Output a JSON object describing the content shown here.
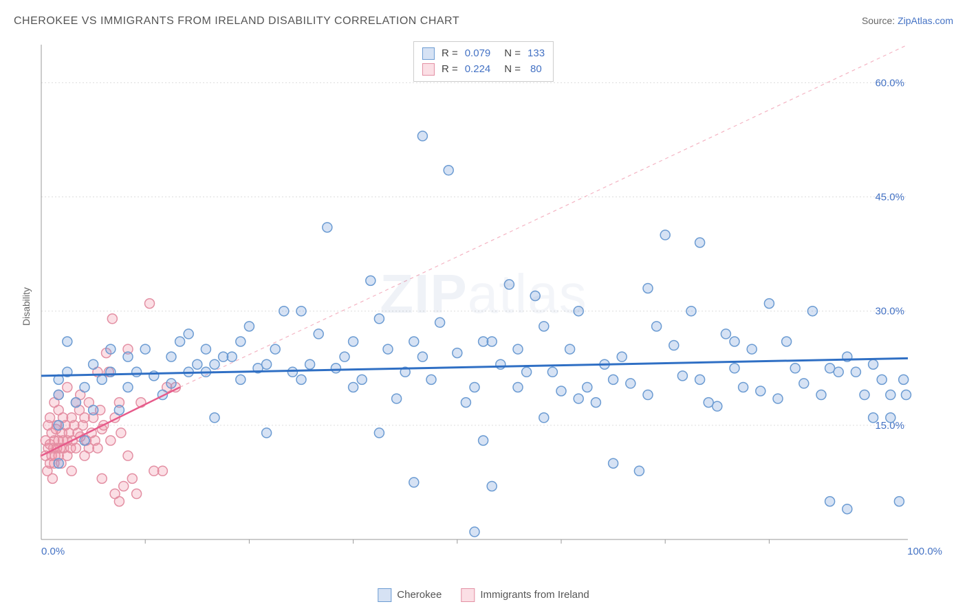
{
  "title": "CHEROKEE VS IMMIGRANTS FROM IRELAND DISABILITY CORRELATION CHART",
  "source_prefix": "Source: ",
  "source_name": "ZipAtlas.com",
  "ylabel": "Disability",
  "watermark_a": "ZIP",
  "watermark_b": "atlas",
  "chart": {
    "type": "scatter",
    "xlim": [
      0,
      100
    ],
    "ylim": [
      0,
      65
    ],
    "ytick_values": [
      15,
      30,
      45,
      60
    ],
    "ytick_labels": [
      "15.0%",
      "30.0%",
      "45.0%",
      "60.0%"
    ],
    "xtick_labels": [
      "0.0%",
      "100.0%"
    ],
    "xtick_minor": [
      12,
      24,
      36,
      48,
      60,
      72,
      84
    ],
    "grid_color": "#dcdcdc",
    "axis_color": "#999999",
    "background": "#ffffff",
    "marker_radius": 7,
    "marker_stroke_width": 1.5,
    "series": [
      {
        "name": "Cherokee",
        "fill": "rgba(120,160,220,0.30)",
        "stroke": "#6b9bd2",
        "R": "0.079",
        "N": "133",
        "trend": {
          "x1": 0,
          "y1": 21.5,
          "x2": 100,
          "y2": 23.8,
          "color": "#2f6fc4",
          "width": 3,
          "dash": ""
        },
        "points": [
          [
            2,
            15
          ],
          [
            2,
            19
          ],
          [
            2,
            21
          ],
          [
            3,
            22
          ],
          [
            3,
            26
          ],
          [
            2,
            10
          ],
          [
            4,
            18
          ],
          [
            5,
            20
          ],
          [
            5,
            13
          ],
          [
            6,
            17
          ],
          [
            6,
            23
          ],
          [
            7,
            21
          ],
          [
            8,
            22
          ],
          [
            8,
            25
          ],
          [
            9,
            17
          ],
          [
            10,
            24
          ],
          [
            10,
            20
          ],
          [
            11,
            22
          ],
          [
            12,
            25
          ],
          [
            13,
            21.5
          ],
          [
            14,
            19
          ],
          [
            15,
            24
          ],
          [
            15,
            20.5
          ],
          [
            16,
            26
          ],
          [
            17,
            22
          ],
          [
            17,
            27
          ],
          [
            18,
            23
          ],
          [
            19,
            22
          ],
          [
            19,
            25
          ],
          [
            20,
            16
          ],
          [
            20,
            23
          ],
          [
            21,
            24
          ],
          [
            22,
            24
          ],
          [
            23,
            26
          ],
          [
            23,
            21
          ],
          [
            24,
            28
          ],
          [
            25,
            22.5
          ],
          [
            26,
            14
          ],
          [
            26,
            23
          ],
          [
            27,
            25
          ],
          [
            28,
            30
          ],
          [
            29,
            22
          ],
          [
            30,
            30
          ],
          [
            30,
            21
          ],
          [
            31,
            23
          ],
          [
            32,
            27
          ],
          [
            33,
            41
          ],
          [
            34,
            22.5
          ],
          [
            35,
            24
          ],
          [
            36,
            20
          ],
          [
            37,
            21
          ],
          [
            38,
            34
          ],
          [
            39,
            14
          ],
          [
            39,
            29
          ],
          [
            40,
            25
          ],
          [
            41,
            18.5
          ],
          [
            42,
            22
          ],
          [
            43,
            7.5
          ],
          [
            43,
            26
          ],
          [
            44,
            53
          ],
          [
            45,
            21
          ],
          [
            46,
            28.5
          ],
          [
            47,
            48.5
          ],
          [
            48,
            24.5
          ],
          [
            49,
            18
          ],
          [
            50,
            1
          ],
          [
            50,
            20
          ],
          [
            51,
            13
          ],
          [
            51,
            26
          ],
          [
            52,
            7
          ],
          [
            53,
            23
          ],
          [
            54,
            33.5
          ],
          [
            55,
            20
          ],
          [
            55,
            25
          ],
          [
            56,
            22
          ],
          [
            57,
            32
          ],
          [
            58,
            16
          ],
          [
            59,
            22
          ],
          [
            60,
            19.5
          ],
          [
            61,
            25
          ],
          [
            62,
            18.5
          ],
          [
            63,
            20
          ],
          [
            64,
            18
          ],
          [
            65,
            23
          ],
          [
            66,
            10
          ],
          [
            66,
            21
          ],
          [
            67,
            24
          ],
          [
            68,
            20.5
          ],
          [
            69,
            9
          ],
          [
            70,
            33
          ],
          [
            70,
            19
          ],
          [
            71,
            28
          ],
          [
            72,
            40
          ],
          [
            73,
            25.5
          ],
          [
            74,
            21.5
          ],
          [
            75,
            30
          ],
          [
            76,
            39
          ],
          [
            76,
            21
          ],
          [
            77,
            18
          ],
          [
            78,
            17.5
          ],
          [
            79,
            27
          ],
          [
            80,
            26
          ],
          [
            80,
            22.5
          ],
          [
            81,
            20
          ],
          [
            82,
            25
          ],
          [
            83,
            19.5
          ],
          [
            84,
            31
          ],
          [
            85,
            18.5
          ],
          [
            86,
            26
          ],
          [
            87,
            22.5
          ],
          [
            88,
            20.5
          ],
          [
            89,
            30
          ],
          [
            90,
            19
          ],
          [
            91,
            22.5
          ],
          [
            91,
            5
          ],
          [
            92,
            22
          ],
          [
            93,
            4
          ],
          [
            93,
            24
          ],
          [
            94,
            22
          ],
          [
            95,
            19
          ],
          [
            96,
            16
          ],
          [
            96,
            23
          ],
          [
            97,
            21
          ],
          [
            98,
            19
          ],
          [
            98,
            16
          ],
          [
            99,
            5
          ],
          [
            99.5,
            21
          ],
          [
            99.8,
            19
          ],
          [
            52,
            26
          ],
          [
            58,
            28
          ],
          [
            62,
            30
          ],
          [
            44,
            24
          ],
          [
            36,
            26
          ]
        ]
      },
      {
        "name": "Immigrants from Ireland",
        "fill": "rgba(240,140,160,0.28)",
        "stroke": "#e38fa3",
        "R": "0.224",
        "N": "80",
        "trend": {
          "x1": 0,
          "y1": 11,
          "x2": 16,
          "y2": 20,
          "color": "#e75a8a",
          "width": 2.5,
          "dash": ""
        },
        "extrap": {
          "x1": 16,
          "y1": 20,
          "x2": 100,
          "y2": 65,
          "color": "#f4b3c2",
          "width": 1.2,
          "dash": "5,5"
        },
        "points": [
          [
            0.5,
            11
          ],
          [
            0.5,
            13
          ],
          [
            0.7,
            9
          ],
          [
            0.8,
            12
          ],
          [
            0.8,
            15
          ],
          [
            1.0,
            10
          ],
          [
            1.0,
            12.5
          ],
          [
            1.0,
            16
          ],
          [
            1.2,
            11
          ],
          [
            1.2,
            14
          ],
          [
            1.3,
            8
          ],
          [
            1.4,
            12
          ],
          [
            1.5,
            13
          ],
          [
            1.5,
            10
          ],
          [
            1.5,
            18
          ],
          [
            1.6,
            11
          ],
          [
            1.7,
            14.5
          ],
          [
            1.8,
            12
          ],
          [
            1.8,
            15
          ],
          [
            2.0,
            11
          ],
          [
            2.0,
            13
          ],
          [
            2.0,
            17
          ],
          [
            2.0,
            19
          ],
          [
            2.2,
            12
          ],
          [
            2.3,
            10
          ],
          [
            2.4,
            14
          ],
          [
            2.5,
            13
          ],
          [
            2.5,
            16
          ],
          [
            2.6,
            12
          ],
          [
            2.8,
            15
          ],
          [
            3.0,
            13
          ],
          [
            3.0,
            11
          ],
          [
            3.0,
            20
          ],
          [
            3.2,
            14
          ],
          [
            3.4,
            12
          ],
          [
            3.5,
            16
          ],
          [
            3.5,
            9
          ],
          [
            3.6,
            13
          ],
          [
            3.8,
            15
          ],
          [
            4.0,
            12
          ],
          [
            4.0,
            18
          ],
          [
            4.2,
            14
          ],
          [
            4.4,
            17
          ],
          [
            4.5,
            19
          ],
          [
            4.5,
            13.5
          ],
          [
            4.8,
            15
          ],
          [
            5.0,
            11
          ],
          [
            5.0,
            16
          ],
          [
            5.2,
            13
          ],
          [
            5.5,
            12
          ],
          [
            5.5,
            18
          ],
          [
            5.8,
            14
          ],
          [
            6.0,
            16
          ],
          [
            6.2,
            13
          ],
          [
            6.5,
            22
          ],
          [
            6.5,
            12
          ],
          [
            6.8,
            17
          ],
          [
            7.0,
            14.5
          ],
          [
            7.0,
            8
          ],
          [
            7.2,
            15
          ],
          [
            7.5,
            24.5
          ],
          [
            7.8,
            22
          ],
          [
            8.0,
            13
          ],
          [
            8.2,
            29
          ],
          [
            8.5,
            6
          ],
          [
            8.5,
            16
          ],
          [
            9.0,
            5
          ],
          [
            9.0,
            18
          ],
          [
            9.2,
            14
          ],
          [
            9.5,
            7
          ],
          [
            10.0,
            11
          ],
          [
            10.0,
            25
          ],
          [
            10.5,
            8
          ],
          [
            11.0,
            6
          ],
          [
            11.5,
            18
          ],
          [
            12.5,
            31
          ],
          [
            13.0,
            9
          ],
          [
            14.0,
            9
          ],
          [
            14.5,
            20
          ],
          [
            15.5,
            20
          ]
        ]
      }
    ]
  },
  "legend_top": {
    "r_label": "R =",
    "n_label": "N ="
  },
  "legend_bottom": {
    "items": [
      "Cherokee",
      "Immigrants from Ireland"
    ]
  }
}
